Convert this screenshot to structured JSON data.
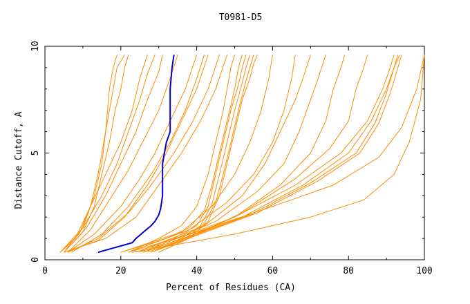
{
  "chart_data": {
    "type": "line",
    "title": "T0981-D5",
    "xlabel": "Percent of Residues (CA)",
    "ylabel": "Distance Cutoff, A",
    "xlim": [
      0,
      100
    ],
    "ylim": [
      0,
      10
    ],
    "x_ticks": [
      0,
      20,
      40,
      60,
      80,
      100
    ],
    "y_ticks": [
      0,
      5,
      10
    ],
    "grid": false,
    "legend": "none",
    "colors": {
      "models": "#ff8c00",
      "highlight": "#0000cc",
      "axes": "#000000"
    },
    "highlight_series": {
      "x": [
        14,
        23,
        24,
        26,
        28,
        29,
        30,
        30.5,
        31,
        31,
        31,
        31,
        31.5,
        32,
        33,
        33,
        33,
        33,
        33,
        33.5,
        34
      ],
      "y": [
        0.35,
        0.8,
        1.0,
        1.3,
        1.6,
        1.8,
        2.1,
        2.4,
        3.0,
        3.5,
        4.0,
        4.5,
        5.0,
        5.5,
        6.0,
        6.5,
        7.0,
        7.5,
        8.0,
        9.0,
        9.6
      ]
    },
    "series": [
      {
        "x": [
          4,
          10,
          13,
          15,
          16,
          16.5,
          17,
          17.5,
          18,
          19
        ],
        "y": [
          0.35,
          1.5,
          3,
          4.5,
          6,
          7,
          8,
          8.5,
          9,
          9.6
        ]
      },
      {
        "x": [
          4,
          9,
          12,
          14,
          15.5,
          17,
          18,
          19,
          21
        ],
        "y": [
          0.35,
          1.2,
          2.5,
          4,
          5.5,
          7,
          8,
          9,
          9.6
        ]
      },
      {
        "x": [
          5,
          10,
          13,
          15,
          17,
          18.5,
          20,
          21,
          22
        ],
        "y": [
          0.35,
          1.3,
          2.5,
          4,
          5.5,
          7,
          8,
          9,
          9.6
        ]
      },
      {
        "x": [
          4,
          8,
          12,
          16,
          20,
          23,
          25,
          27
        ],
        "y": [
          0.35,
          1,
          2.5,
          4,
          5.5,
          7,
          8.5,
          9.6
        ]
      },
      {
        "x": [
          5,
          10,
          15,
          19,
          22,
          25,
          27,
          29
        ],
        "y": [
          0.35,
          1.5,
          3,
          4.5,
          6,
          7.5,
          8.7,
          9.6
        ]
      },
      {
        "x": [
          5,
          11,
          16,
          20,
          24,
          27,
          30,
          31
        ],
        "y": [
          0.35,
          1.5,
          3,
          4.5,
          6,
          7.5,
          8.8,
          9.6
        ]
      },
      {
        "x": [
          6,
          12,
          17,
          22,
          26,
          30,
          33,
          35
        ],
        "y": [
          0.35,
          1.4,
          2.8,
          4.2,
          5.6,
          7,
          8.5,
          9.6
        ]
      },
      {
        "x": [
          6,
          13,
          20,
          25,
          29,
          33,
          37,
          40
        ],
        "y": [
          0.35,
          1.2,
          2.5,
          3.8,
          5,
          6.5,
          8,
          9.6
        ]
      },
      {
        "x": [
          7,
          15,
          22,
          28,
          33,
          37,
          40,
          42
        ],
        "y": [
          0.35,
          1.2,
          2.5,
          4,
          5.5,
          7,
          8.5,
          9.6
        ]
      },
      {
        "x": [
          5,
          14,
          21,
          27,
          32,
          36,
          40,
          43
        ],
        "y": [
          0.35,
          0.9,
          2,
          3.5,
          5,
          6.5,
          8,
          9.6
        ]
      },
      {
        "x": [
          6,
          14,
          22,
          28,
          34,
          39,
          43,
          46
        ],
        "y": [
          0.35,
          1,
          2.2,
          3.5,
          5,
          6.5,
          8,
          9.6
        ]
      },
      {
        "x": [
          5,
          16,
          24,
          30,
          36,
          41,
          45,
          48
        ],
        "y": [
          0.35,
          1,
          2,
          3.5,
          5,
          6.5,
          8,
          9.6
        ]
      },
      {
        "x": [
          22,
          30,
          36,
          40,
          43,
          45,
          47,
          48,
          49,
          50
        ],
        "y": [
          0.35,
          1,
          1.6,
          2.5,
          4,
          5.5,
          7,
          8,
          9,
          9.6
        ]
      },
      {
        "x": [
          20,
          32,
          38,
          42,
          44,
          46,
          48,
          50,
          51,
          52
        ],
        "y": [
          0.35,
          1,
          1.5,
          2.3,
          3.5,
          5,
          6.5,
          8,
          9,
          9.6
        ]
      },
      {
        "x": [
          24,
          34,
          40,
          43,
          45,
          47,
          49,
          51,
          52,
          53
        ],
        "y": [
          0.35,
          1,
          1.6,
          2.5,
          4,
          5.5,
          7,
          8.2,
          9,
          9.6
        ]
      },
      {
        "x": [
          26,
          36,
          41,
          44,
          46,
          48,
          50,
          52,
          53,
          54
        ],
        "y": [
          0.35,
          1,
          1.6,
          2.6,
          4,
          5.5,
          7,
          8.3,
          9,
          9.6
        ]
      },
      {
        "x": [
          28,
          37,
          42,
          45,
          47,
          49,
          51,
          53,
          54,
          55
        ],
        "y": [
          0.35,
          1,
          1.7,
          2.7,
          4,
          5.5,
          7,
          8.4,
          9,
          9.6
        ]
      },
      {
        "x": [
          30,
          38,
          43,
          46,
          48,
          50,
          52,
          54,
          55,
          56
        ],
        "y": [
          0.35,
          1,
          1.8,
          3,
          4.5,
          6,
          7.5,
          8.5,
          9.2,
          9.6
        ]
      },
      {
        "x": [
          20,
          36,
          44,
          50,
          54,
          57,
          59,
          60
        ],
        "y": [
          0.35,
          1.3,
          2.5,
          4,
          5.5,
          7,
          8.5,
          9.6
        ]
      },
      {
        "x": [
          22,
          38,
          48,
          55,
          60,
          63,
          65,
          66
        ],
        "y": [
          0.35,
          1.4,
          2.7,
          4,
          5.5,
          7,
          8.5,
          9.6
        ]
      },
      {
        "x": [
          24,
          42,
          52,
          58,
          62,
          66,
          68,
          70
        ],
        "y": [
          0.35,
          1.6,
          3,
          4.5,
          6,
          7.5,
          8.5,
          9.6
        ]
      },
      {
        "x": [
          26,
          45,
          56,
          63,
          67,
          70,
          72,
          74
        ],
        "y": [
          0.35,
          1.8,
          3.2,
          4.5,
          6,
          7.5,
          8.5,
          9.6
        ]
      },
      {
        "x": [
          28,
          50,
          62,
          70,
          74,
          76,
          78,
          79
        ],
        "y": [
          0.35,
          2,
          3.5,
          5,
          6.5,
          8,
          9,
          9.6
        ]
      },
      {
        "x": [
          30,
          52,
          66,
          75,
          80,
          82,
          84,
          85
        ],
        "y": [
          0.35,
          2.2,
          3.8,
          5.2,
          6.5,
          8,
          9,
          9.6
        ]
      },
      {
        "x": [
          25,
          50,
          66,
          78,
          85,
          89,
          91,
          92
        ],
        "y": [
          0.35,
          2,
          3.5,
          5,
          6.5,
          8,
          9,
          9.6
        ]
      },
      {
        "x": [
          26,
          52,
          68,
          80,
          86,
          90,
          92,
          93
        ],
        "y": [
          0.35,
          2,
          3.5,
          5,
          6.5,
          8,
          9,
          9.6
        ]
      },
      {
        "x": [
          27,
          54,
          70,
          82,
          87,
          90,
          92,
          93.5
        ],
        "y": [
          0.35,
          2.1,
          3.6,
          5,
          6.4,
          7.8,
          9,
          9.6
        ]
      },
      {
        "x": [
          28,
          56,
          72,
          83,
          88,
          91,
          93,
          94
        ],
        "y": [
          0.35,
          2.2,
          3.7,
          5,
          6.4,
          7.8,
          9,
          9.6
        ]
      },
      {
        "x": [
          22,
          40,
          60,
          76,
          88,
          94,
          98,
          100
        ],
        "y": [
          0.35,
          1.3,
          2.5,
          3.5,
          4.8,
          6.2,
          8,
          9.6
        ]
      },
      {
        "x": [
          23,
          50,
          70,
          84,
          92,
          96,
          99,
          100
        ],
        "y": [
          0.35,
          1.2,
          2,
          2.8,
          4,
          5.5,
          7.5,
          9.6
        ]
      }
    ]
  }
}
